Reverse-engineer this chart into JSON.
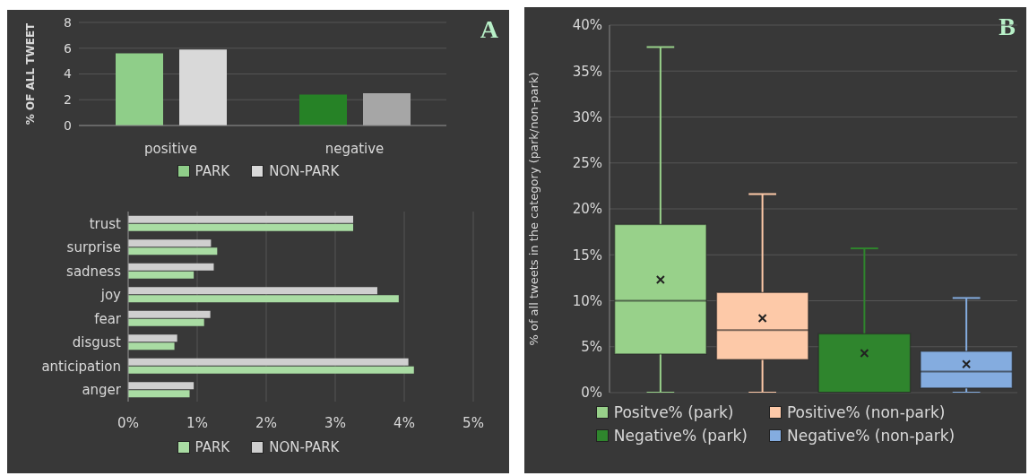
{
  "chart_data": [
    {
      "type": "bar",
      "ylabel": "% OF ALL TWEET",
      "categories": [
        "positive",
        "negative"
      ],
      "ylim": [
        0,
        8
      ],
      "yticks": [
        0,
        2,
        4,
        6,
        8
      ],
      "grid": "y",
      "legend": "bottom",
      "annotations": [
        "A"
      ],
      "series": [
        {
          "name": "PARK",
          "color": "#8fce89",
          "colors": [
            "#8fce89",
            "#268226"
          ],
          "values": [
            5.6,
            2.4
          ]
        },
        {
          "name": "NON-PARK",
          "color": "#d9d9d9",
          "colors": [
            "#d9d9d9",
            "#a6a6a6"
          ],
          "values": [
            5.9,
            2.5
          ]
        }
      ]
    },
    {
      "type": "bar",
      "orientation": "horizontal",
      "categories": [
        "trust",
        "surprise",
        "sadness",
        "joy",
        "fear",
        "disgust",
        "anticipation",
        "anger"
      ],
      "xlim": [
        0,
        5
      ],
      "xticks": [
        {
          "value": 0,
          "label": "0%"
        },
        {
          "value": 1,
          "label": "1%"
        },
        {
          "value": 2,
          "label": "2%"
        },
        {
          "value": 3,
          "label": "3%"
        },
        {
          "value": 4,
          "label": "4%"
        },
        {
          "value": 5,
          "label": "5%"
        }
      ],
      "grid": "x",
      "legend": "bottom",
      "series": [
        {
          "name": "PARK",
          "color": "#a9dca3",
          "values": [
            3.26,
            1.29,
            0.95,
            3.92,
            1.1,
            0.67,
            4.14,
            0.89
          ]
        },
        {
          "name": "NON-PARK",
          "color": "#cfcfcf",
          "values": [
            3.26,
            1.2,
            1.24,
            3.61,
            1.19,
            0.71,
            4.06,
            0.95
          ]
        }
      ]
    },
    {
      "type": "box",
      "ylabel": "% of all tweets in the category (park/non-park)",
      "categories": [
        null,
        null,
        null,
        null
      ],
      "ylim": [
        0,
        40
      ],
      "yticks": [
        {
          "value": 0,
          "label": "0%"
        },
        {
          "value": 5,
          "label": "5%"
        },
        {
          "value": 10,
          "label": "10%"
        },
        {
          "value": 15,
          "label": "15%"
        },
        {
          "value": 20,
          "label": "20%"
        },
        {
          "value": 25,
          "label": "25%"
        },
        {
          "value": 30,
          "label": "30%"
        },
        {
          "value": 35,
          "label": "35%"
        },
        {
          "value": 40,
          "label": "40%"
        }
      ],
      "grid": "y",
      "legend": "bottom",
      "marker": "cross",
      "annotations": [
        "B"
      ],
      "series": [
        {
          "name": "Positve% (park)",
          "color": "#98d18a",
          "boxes": [
            {
              "low": 0,
              "q1": 4.2,
              "median": 10.0,
              "q3": 18.3,
              "high": 37.6,
              "mean": 12.3
            },
            null,
            null,
            null
          ]
        },
        {
          "name": "Positive% (non-park)",
          "color": "#fdc9a8",
          "boxes": [
            null,
            {
              "low": 0,
              "q1": 3.6,
              "median": 6.8,
              "q3": 10.9,
              "high": 21.6,
              "mean": 8.1
            },
            null,
            null
          ]
        },
        {
          "name": "Negative% (park)",
          "color": "#2f852d",
          "boxes": [
            null,
            null,
            {
              "low": 0,
              "q1": 0,
              "median": 0,
              "q3": 6.4,
              "high": 15.7,
              "mean": 4.3
            },
            null
          ]
        },
        {
          "name": "Negative% (non-park)",
          "color": "#84acdf",
          "boxes": [
            null,
            null,
            null,
            {
              "low": 0,
              "q1": 0.5,
              "median": 2.3,
              "q3": 4.5,
              "high": 10.3,
              "mean": 3.1
            }
          ]
        }
      ]
    }
  ]
}
